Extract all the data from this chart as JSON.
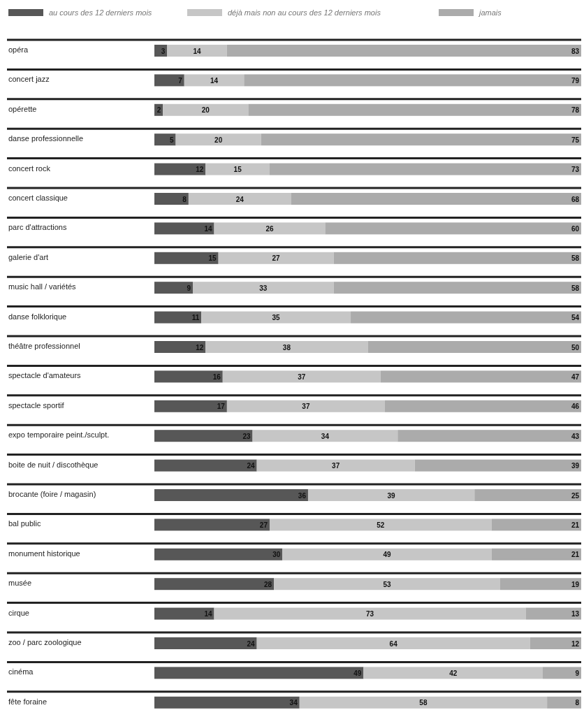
{
  "chart_data": {
    "type": "bar",
    "orientation": "horizontal",
    "stacked": true,
    "data_labels": true,
    "grid": "y",
    "legend": "top left",
    "tick_labels": "y",
    "xlim": [
      0,
      100
    ],
    "categories": [
      "opéra",
      "concert jazz",
      "opérette",
      "danse professionnelle",
      "concert rock",
      "concert classique",
      "parc d'attractions",
      "galerie d'art",
      "music hall / variétés",
      "danse folklorique",
      "théâtre professionnel",
      "spectacle d'amateurs",
      "spectacle sportif",
      "expo temporaire peint./sculpt.",
      "boite de nuit / discothèque",
      "brocante (foire / magasin)",
      "bal public",
      "monument historique",
      "musée",
      "cirque",
      "zoo / parc zoologique",
      "cinéma",
      "fête foraine"
    ],
    "series": [
      {
        "name": "au cours des 12 derniers mois",
        "color": "#575757",
        "values": [
          3,
          7,
          2,
          5,
          12,
          8,
          14,
          15,
          9,
          11,
          12,
          16,
          17,
          23,
          24,
          36,
          27,
          30,
          28,
          14,
          24,
          49,
          34
        ]
      },
      {
        "name": "déjà mais non au cours des 12 derniers mois",
        "color": "#c6c6c6",
        "values": [
          14,
          14,
          20,
          20,
          15,
          24,
          26,
          27,
          33,
          35,
          38,
          37,
          37,
          34,
          37,
          39,
          52,
          49,
          53,
          73,
          64,
          42,
          58
        ]
      },
      {
        "name": "jamais",
        "color": "#ababab",
        "values": [
          83,
          79,
          78,
          75,
          73,
          68,
          60,
          58,
          58,
          54,
          50,
          47,
          46,
          43,
          39,
          25,
          21,
          21,
          19,
          13,
          12,
          9,
          8
        ]
      }
    ]
  }
}
